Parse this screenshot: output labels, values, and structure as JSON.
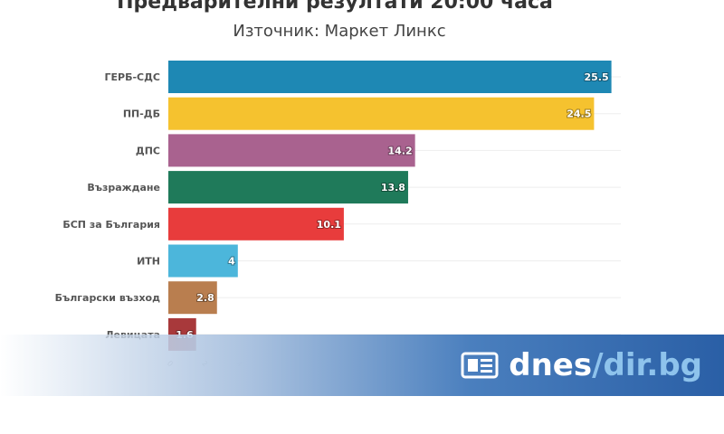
{
  "chart_data": {
    "type": "bar",
    "orientation": "horizontal",
    "title": "Предварителни резултати 20:00 часа",
    "subtitle": "Източник: Маркет Линкс",
    "categories": [
      "ГЕРБ-СДС",
      "ПП-ДБ",
      "ДПС",
      "Възраждане",
      "БСП за България",
      "ИТН",
      "Български възход",
      "Левицата"
    ],
    "values": [
      25.5,
      24.5,
      14.2,
      13.8,
      10.1,
      4,
      2.8,
      1.6
    ],
    "colors": [
      "#1e88b4",
      "#f5c22f",
      "#a9628f",
      "#1f7a5a",
      "#e83c3c",
      "#4cb6db",
      "#b97e4f",
      "#a8393b"
    ],
    "xticks": [
      "0",
      "2",
      "4",
      "6",
      "8",
      "10",
      "12",
      "14"
    ],
    "xlim": [
      0,
      26
    ],
    "grid": true
  },
  "branding": {
    "icon": "newspaper-icon",
    "name": "dnes",
    "domain": "/dir.bg"
  }
}
